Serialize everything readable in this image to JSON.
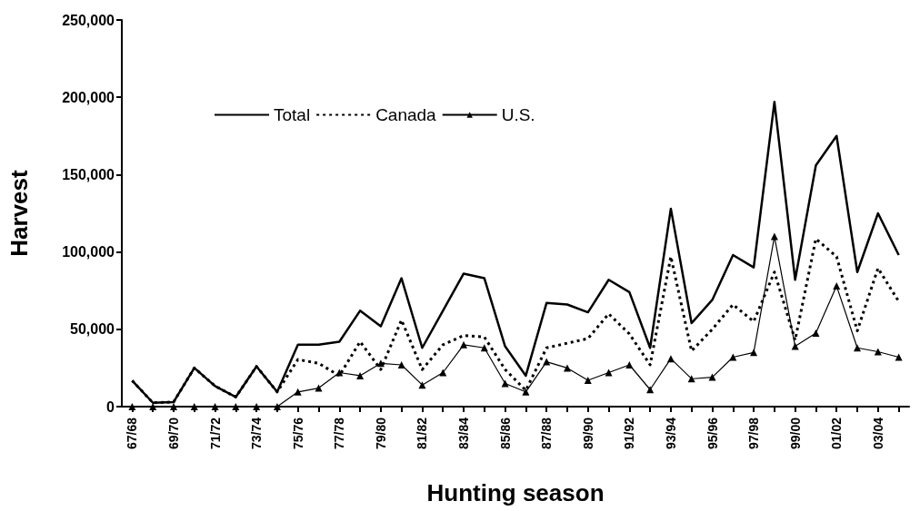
{
  "chart_data": {
    "type": "line",
    "xlabel": "Hunting season",
    "ylabel": "Harvest",
    "categories": [
      "67/68",
      null,
      "69/70",
      null,
      "71/72",
      null,
      "73/74",
      null,
      "75/76",
      null,
      "77/78",
      null,
      "79/80",
      null,
      "81/82",
      null,
      "83/84",
      null,
      "85/86",
      null,
      "87/88",
      null,
      "89/90",
      null,
      "91/92",
      null,
      "93/94",
      null,
      "95/96",
      null,
      "97/98",
      null,
      "99/00",
      null,
      "01/02",
      null,
      "03/04",
      null
    ],
    "series": [
      {
        "name": "Total",
        "color": "#000000",
        "line_style": "solid",
        "marker": "none",
        "values": [
          16800,
          2500,
          3000,
          25000,
          13300,
          6200,
          26000,
          9500,
          40000,
          40000,
          42000,
          62000,
          52000,
          83000,
          38000,
          62000,
          86000,
          83000,
          39000,
          20000,
          67000,
          66000,
          61000,
          82000,
          74000,
          38000,
          128000,
          54000,
          69000,
          98000,
          90000,
          197000,
          82000,
          156000,
          175000,
          87000,
          125000,
          98000
        ]
      },
      {
        "name": "Canada",
        "color": "#000000",
        "line_style": "dashed",
        "marker": "none",
        "values": [
          16800,
          2500,
          3000,
          25000,
          13300,
          6200,
          26000,
          9500,
          30500,
          28000,
          20000,
          42000,
          24000,
          56000,
          24000,
          40000,
          46000,
          45000,
          24000,
          10500,
          38000,
          41000,
          44000,
          60000,
          47000,
          27000,
          97000,
          36000,
          50000,
          66000,
          55000,
          87000,
          43000,
          108500,
          97000,
          49000,
          89500,
          68000
        ]
      },
      {
        "name": "U.S.",
        "color": "#000000",
        "line_style": "solid",
        "marker": "triangle",
        "values": [
          0,
          0,
          0,
          0,
          0,
          0,
          0,
          0,
          9500,
          12000,
          22000,
          20000,
          28000,
          27000,
          14000,
          22000,
          40000,
          38000,
          15000,
          9500,
          29000,
          25000,
          17000,
          22000,
          27000,
          11000,
          31000,
          18000,
          19000,
          32000,
          35000,
          110000,
          39000,
          47500,
          78000,
          38000,
          35500,
          32000
        ]
      }
    ],
    "ylim": [
      0,
      250000
    ],
    "yticks": [
      {
        "value": 0,
        "label": "0"
      },
      {
        "value": 50000,
        "label": "50,000"
      },
      {
        "value": 100000,
        "label": "100,000"
      },
      {
        "value": 150000,
        "label": "150,000"
      },
      {
        "value": 200000,
        "label": "200,000"
      },
      {
        "value": 250000,
        "label": "250,000"
      }
    ],
    "grid": false,
    "legend": "top"
  }
}
